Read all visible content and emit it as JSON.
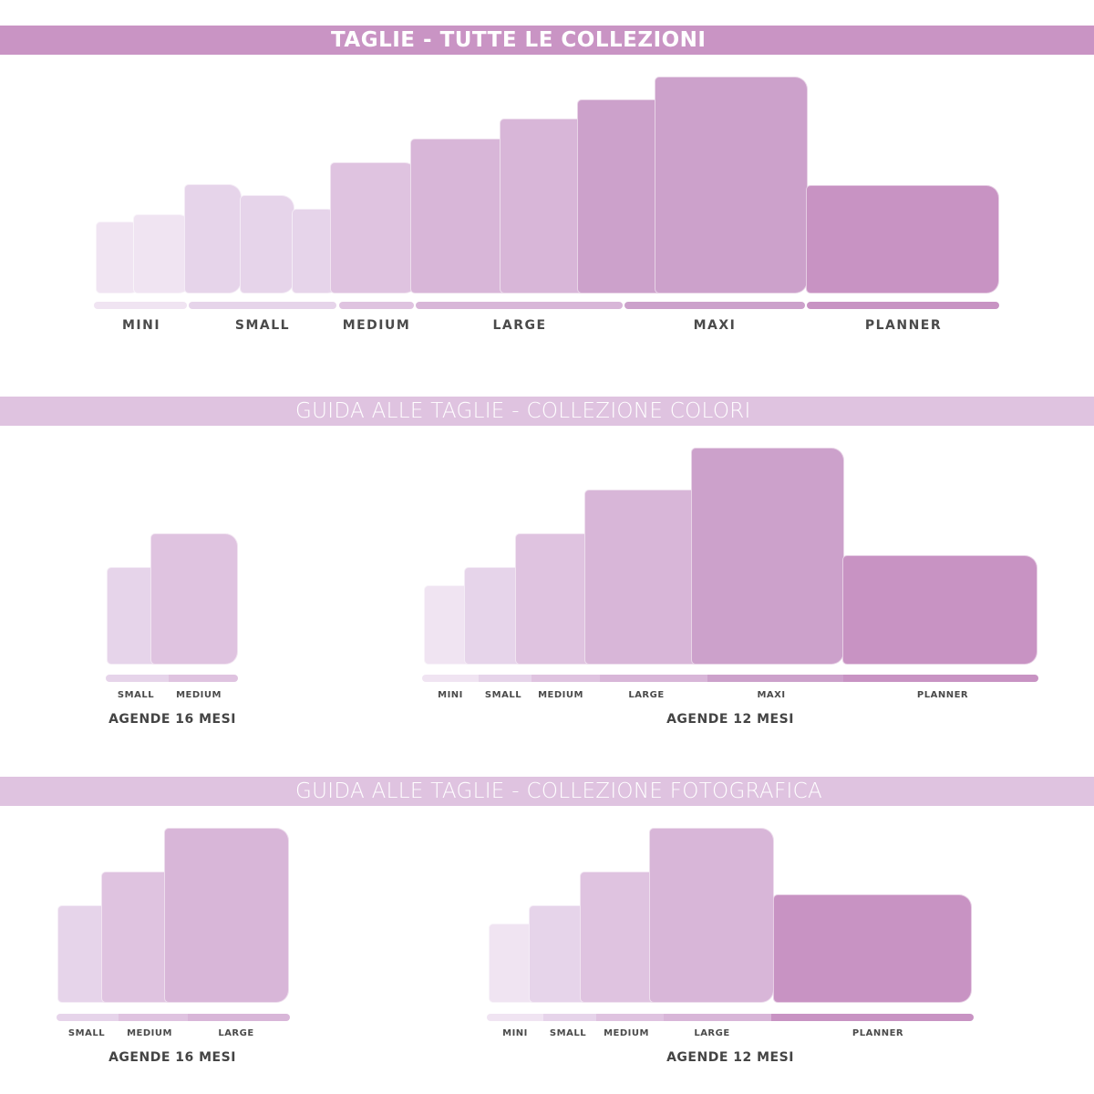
{
  "headers": {
    "all": "TAGLIE - TUTTE LE COLLEZIONI",
    "colori": "GUIDA ALLE TAGLIE - COLLEZIONE COLORI",
    "fotografica": "GUIDA ALLE TAGLIE - COLLEZIONE FOTOGRAFICA"
  },
  "sizes": {
    "mini": "MINI",
    "small": "SMALL",
    "medium": "MEDIUM",
    "large": "LARGE",
    "maxi": "MAXI",
    "planner": "PLANNER"
  },
  "captions": {
    "agende16": "AGENDE 16 MESI",
    "agende12": "AGENDE 12 MESI"
  },
  "colors": {
    "mini": "#f0e4f2",
    "small": "#e6d4ea",
    "medium": "#dfc3e0",
    "large": "#d8b6d8",
    "maxi": "#cca1cb",
    "planner": "#c893c3",
    "header_primary": "#c994c4",
    "header_secondary": "#dfc3e0"
  }
}
